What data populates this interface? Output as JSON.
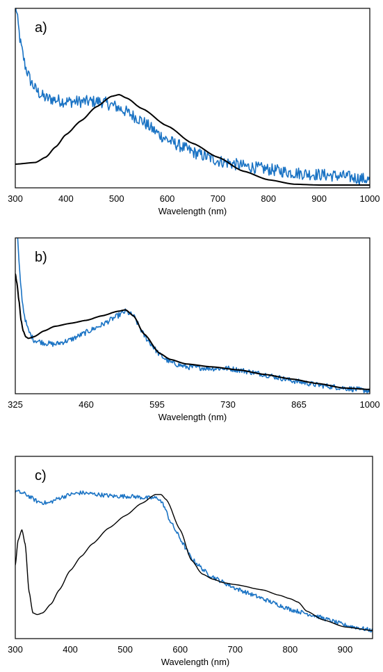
{
  "colors": {
    "measured": "#1a73c4",
    "calculated": "#000000",
    "frame": "#000000"
  },
  "chart_data": [
    {
      "type": "line",
      "panel_label": "a)",
      "xlabel": "Wavelength (nm)",
      "ylabel": "",
      "xlim": [
        300,
        1000
      ],
      "ylim": [
        0,
        1
      ],
      "xticks": [
        "300",
        "400",
        "500",
        "600",
        "700",
        "800",
        "900",
        "1000"
      ],
      "grid": false,
      "series": [
        {
          "role": "measured",
          "noise": 0.035,
          "x": [
            300,
            310,
            320,
            330,
            340,
            350,
            360,
            380,
            400,
            420,
            450,
            470,
            500,
            520,
            550,
            580,
            600,
            650,
            700,
            750,
            800,
            850,
            900,
            950,
            1000
          ],
          "y": [
            1.05,
            0.82,
            0.68,
            0.6,
            0.55,
            0.52,
            0.5,
            0.49,
            0.48,
            0.48,
            0.48,
            0.48,
            0.45,
            0.42,
            0.37,
            0.3,
            0.26,
            0.19,
            0.14,
            0.11,
            0.09,
            0.07,
            0.06,
            0.05,
            0.03
          ]
        },
        {
          "role": "calculated",
          "noise": 0,
          "x": [
            300,
            340,
            360,
            380,
            400,
            430,
            460,
            490,
            505,
            520,
            550,
            600,
            650,
            700,
            750,
            800,
            850,
            900,
            1000
          ],
          "y": [
            0.12,
            0.13,
            0.16,
            0.22,
            0.29,
            0.37,
            0.45,
            0.51,
            0.52,
            0.5,
            0.44,
            0.34,
            0.24,
            0.16,
            0.08,
            0.03,
            0.005,
            0.0,
            0.0
          ]
        }
      ]
    },
    {
      "type": "line",
      "panel_label": "b)",
      "xlabel": "Wavelength (nm)",
      "ylabel": "",
      "xlim": [
        325,
        1000
      ],
      "ylim": [
        0,
        1
      ],
      "xticks": [
        "325",
        "460",
        "595",
        "730",
        "865",
        "1000"
      ],
      "grid": false,
      "series": [
        {
          "role": "measured",
          "noise": 0.018,
          "x": [
            329,
            332,
            336,
            340,
            345,
            350,
            360,
            380,
            400,
            430,
            460,
            490,
            520,
            535,
            550,
            570,
            600,
            620,
            650,
            700,
            730,
            750,
            800,
            850,
            900,
            950,
            1000
          ],
          "y": [
            1.05,
            0.85,
            0.68,
            0.55,
            0.46,
            0.4,
            0.34,
            0.32,
            0.31,
            0.34,
            0.39,
            0.44,
            0.5,
            0.53,
            0.5,
            0.37,
            0.24,
            0.19,
            0.16,
            0.15,
            0.15,
            0.14,
            0.11,
            0.07,
            0.04,
            0.02,
            0.0
          ]
        },
        {
          "role": "calculated",
          "noise": 0,
          "x": [
            325,
            328,
            332,
            336,
            340,
            345,
            350,
            360,
            380,
            400,
            430,
            460,
            490,
            520,
            535,
            550,
            570,
            600,
            620,
            650,
            700,
            750,
            800,
            850,
            900,
            950,
            1000
          ],
          "y": [
            0.78,
            0.72,
            0.6,
            0.47,
            0.4,
            0.36,
            0.35,
            0.36,
            0.4,
            0.43,
            0.45,
            0.47,
            0.5,
            0.53,
            0.54,
            0.5,
            0.38,
            0.25,
            0.21,
            0.18,
            0.16,
            0.14,
            0.11,
            0.08,
            0.05,
            0.02,
            0.01
          ]
        }
      ]
    },
    {
      "type": "line",
      "panel_label": "c)",
      "xlabel": "Wavelength (nm)",
      "ylabel": "",
      "xlim": [
        300,
        950
      ],
      "ylim": [
        0,
        1
      ],
      "xticks": [
        "300",
        "400",
        "500",
        "600",
        "700",
        "800",
        "900"
      ],
      "grid": false,
      "series": [
        {
          "role": "measured",
          "noise": 0.012,
          "x": [
            300,
            320,
            340,
            360,
            380,
            400,
            420,
            450,
            480,
            510,
            540,
            560,
            570,
            580,
            600,
            620,
            650,
            680,
            700,
            750,
            800,
            850,
            900,
            950
          ],
          "y": [
            0.82,
            0.8,
            0.76,
            0.75,
            0.78,
            0.8,
            0.81,
            0.8,
            0.79,
            0.79,
            0.78,
            0.78,
            0.74,
            0.66,
            0.55,
            0.44,
            0.35,
            0.3,
            0.27,
            0.21,
            0.15,
            0.11,
            0.06,
            0.03
          ]
        },
        {
          "role": "calculated",
          "noise": 0,
          "x": [
            300,
            305,
            312,
            318,
            325,
            332,
            340,
            350,
            365,
            380,
            400,
            420,
            440,
            470,
            500,
            530,
            555,
            565,
            575,
            600,
            620,
            640,
            660,
            680,
            700,
            750,
            780,
            800,
            815,
            830,
            860,
            900,
            950
          ],
          "y": [
            0.4,
            0.54,
            0.6,
            0.52,
            0.25,
            0.13,
            0.12,
            0.13,
            0.18,
            0.26,
            0.37,
            0.45,
            0.52,
            0.61,
            0.68,
            0.75,
            0.8,
            0.8,
            0.77,
            0.6,
            0.43,
            0.35,
            0.32,
            0.3,
            0.29,
            0.26,
            0.23,
            0.21,
            0.19,
            0.14,
            0.09,
            0.05,
            0.03
          ]
        }
      ]
    }
  ]
}
